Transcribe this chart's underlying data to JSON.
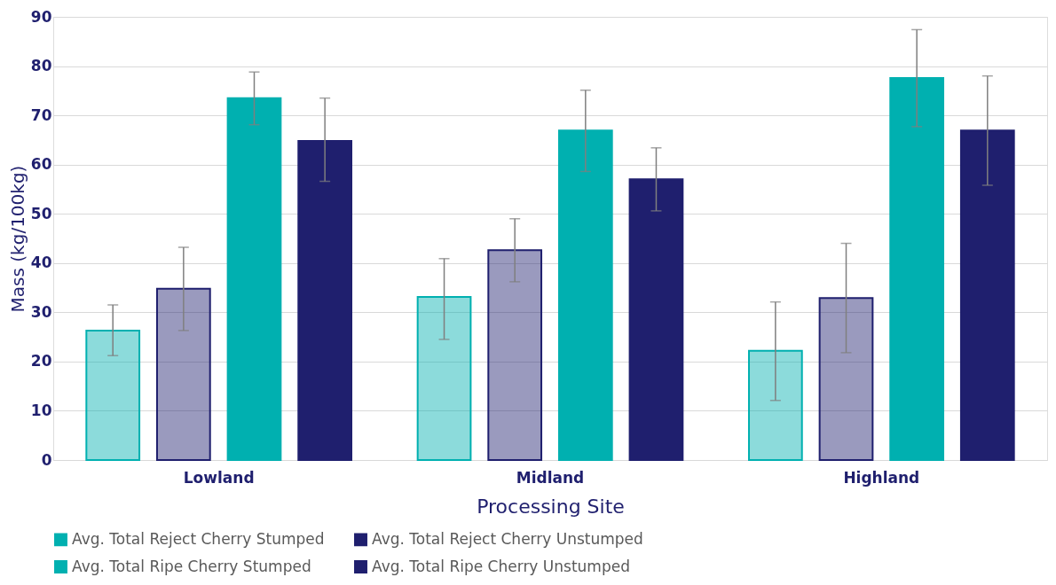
{
  "chart_data": {
    "type": "bar",
    "xlabel": "Processing Site",
    "ylabel": "Mass (kg/100kg)",
    "categories": [
      "Lowland",
      "Midland",
      "Highland"
    ],
    "series": [
      {
        "name": "Avg. Total Reject Cherry Stumped",
        "color": "#00b0b0",
        "values": [
          26.3,
          33.1,
          22.2
        ],
        "errors": [
          [
            21.2,
            31.5
          ],
          [
            24.5,
            40.9
          ],
          [
            12.1,
            32.1
          ]
        ]
      },
      {
        "name": "Avg. Total Reject Cherry Unstumped",
        "color": "#1f1f6e",
        "values": [
          34.8,
          42.6,
          32.9
        ],
        "errors": [
          [
            26.3,
            43.2
          ],
          [
            36.2,
            49.0
          ],
          [
            21.8,
            44.0
          ]
        ]
      },
      {
        "name": "Avg. Total Ripe Cherry Stumped",
        "color": "#00b0b0",
        "values": [
          73.5,
          66.9,
          77.6
        ],
        "errors": [
          [
            68.1,
            78.8
          ],
          [
            58.6,
            75.1
          ],
          [
            67.7,
            87.4
          ]
        ]
      },
      {
        "name": "Avg. Total Ripe Cherry Unstumped",
        "color": "#1f1f6e",
        "values": [
          64.8,
          57.0,
          66.9
        ],
        "errors": [
          [
            56.6,
            73.5
          ],
          [
            50.6,
            63.4
          ],
          [
            55.8,
            78.0
          ]
        ]
      }
    ],
    "ylim": [
      0,
      90
    ],
    "yticks": [
      0,
      10,
      20,
      30,
      40,
      50,
      60,
      70,
      80,
      90
    ],
    "grid": "y",
    "legend": "bottom"
  }
}
